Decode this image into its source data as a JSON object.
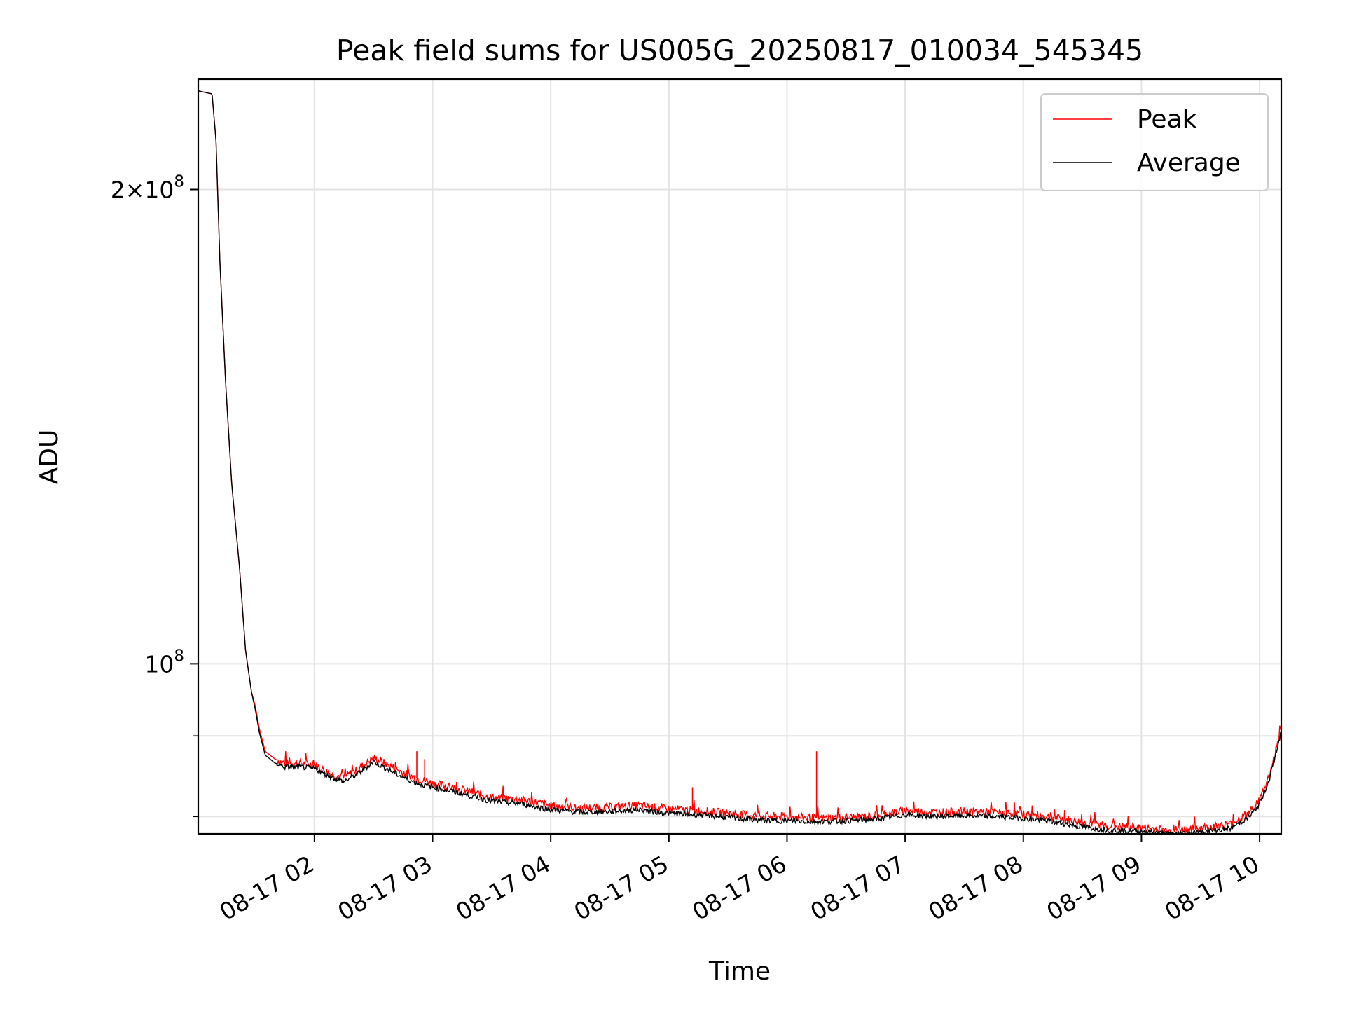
{
  "chart_data": {
    "type": "line",
    "title": "Peak field sums for US005G_20250817_010034_545345",
    "xlabel": "Time",
    "ylabel": "ADU",
    "y_scale": "log",
    "ylim": [
      78000000,
      235000000
    ],
    "xlim": [
      "2025-08-17 01:01",
      "2025-08-17 10:11"
    ],
    "x_ticks": [
      {
        "x": "2025-08-17 02:00",
        "label": "08-17 02"
      },
      {
        "x": "2025-08-17 03:00",
        "label": "08-17 03"
      },
      {
        "x": "2025-08-17 04:00",
        "label": "08-17 04"
      },
      {
        "x": "2025-08-17 05:00",
        "label": "08-17 05"
      },
      {
        "x": "2025-08-17 06:00",
        "label": "08-17 06"
      },
      {
        "x": "2025-08-17 07:00",
        "label": "08-17 07"
      },
      {
        "x": "2025-08-17 08:00",
        "label": "08-17 08"
      },
      {
        "x": "2025-08-17 09:00",
        "label": "08-17 09"
      },
      {
        "x": "2025-08-17 10:00",
        "label": "08-17 10"
      }
    ],
    "y_major_ticks": [
      {
        "y": 100000000,
        "base": "10",
        "exp": "8"
      },
      {
        "y": 200000000,
        "base": "2×10",
        "exp": "8"
      }
    ],
    "y_minor_ticks": [
      80000000,
      90000000
    ],
    "grid": true,
    "legend_position": "top-right",
    "series": [
      {
        "name": "Peak",
        "color": "#ff0000",
        "x": [
          "2025-08-17 01:01",
          "2025-08-17 01:08",
          "2025-08-17 01:10",
          "2025-08-17 01:12",
          "2025-08-17 01:15",
          "2025-08-17 01:18",
          "2025-08-17 01:22",
          "2025-08-17 01:25",
          "2025-08-17 01:28",
          "2025-08-17 01:30",
          "2025-08-17 01:32",
          "2025-08-17 01:35",
          "2025-08-17 01:40",
          "2025-08-17 01:45",
          "2025-08-17 01:52",
          "2025-08-17 02:00",
          "2025-08-17 02:08",
          "2025-08-17 02:15",
          "2025-08-17 02:22",
          "2025-08-17 02:30",
          "2025-08-17 02:38",
          "2025-08-17 02:45",
          "2025-08-17 02:52",
          "2025-08-17 03:00",
          "2025-08-17 03:15",
          "2025-08-17 03:30",
          "2025-08-17 03:45",
          "2025-08-17 04:00",
          "2025-08-17 04:15",
          "2025-08-17 04:30",
          "2025-08-17 04:45",
          "2025-08-17 05:00",
          "2025-08-17 05:15",
          "2025-08-17 05:30",
          "2025-08-17 05:45",
          "2025-08-17 06:00",
          "2025-08-17 06:15",
          "2025-08-17 06:30",
          "2025-08-17 06:45",
          "2025-08-17 07:00",
          "2025-08-17 07:15",
          "2025-08-17 07:30",
          "2025-08-17 07:45",
          "2025-08-17 08:00",
          "2025-08-17 08:15",
          "2025-08-17 08:30",
          "2025-08-17 08:45",
          "2025-08-17 09:00",
          "2025-08-17 09:15",
          "2025-08-17 09:30",
          "2025-08-17 09:45",
          "2025-08-17 09:55",
          "2025-08-17 10:00",
          "2025-08-17 10:05",
          "2025-08-17 10:11"
        ],
        "y": [
          231000000,
          230000000,
          215000000,
          180000000,
          150000000,
          130000000,
          115000000,
          102000000,
          96000000,
          94000000,
          91000000,
          88000000,
          87000000,
          86500000,
          86500000,
          86300000,
          85200000,
          84700000,
          85700000,
          87200000,
          86200000,
          85300000,
          84600000,
          84000000,
          83200000,
          82300000,
          82000000,
          81300000,
          81000000,
          81100000,
          81300000,
          80900000,
          80700000,
          80400000,
          80100000,
          80000000,
          79800000,
          79900000,
          80100000,
          80700000,
          80500000,
          80600000,
          80500000,
          80300000,
          79900000,
          79300000,
          78900000,
          78700000,
          78400000,
          78700000,
          79100000,
          80500000,
          82000000,
          85000000,
          91000000
        ]
      },
      {
        "name": "Average",
        "color": "#000000",
        "x": [
          "2025-08-17 01:01",
          "2025-08-17 01:08",
          "2025-08-17 01:10",
          "2025-08-17 01:12",
          "2025-08-17 01:15",
          "2025-08-17 01:18",
          "2025-08-17 01:22",
          "2025-08-17 01:25",
          "2025-08-17 01:28",
          "2025-08-17 01:30",
          "2025-08-17 01:32",
          "2025-08-17 01:35",
          "2025-08-17 01:40",
          "2025-08-17 01:45",
          "2025-08-17 01:52",
          "2025-08-17 02:00",
          "2025-08-17 02:08",
          "2025-08-17 02:15",
          "2025-08-17 02:22",
          "2025-08-17 02:30",
          "2025-08-17 02:38",
          "2025-08-17 02:45",
          "2025-08-17 02:52",
          "2025-08-17 03:00",
          "2025-08-17 03:15",
          "2025-08-17 03:30",
          "2025-08-17 03:45",
          "2025-08-17 04:00",
          "2025-08-17 04:15",
          "2025-08-17 04:30",
          "2025-08-17 04:45",
          "2025-08-17 05:00",
          "2025-08-17 05:15",
          "2025-08-17 05:30",
          "2025-08-17 05:45",
          "2025-08-17 06:00",
          "2025-08-17 06:15",
          "2025-08-17 06:30",
          "2025-08-17 06:45",
          "2025-08-17 07:00",
          "2025-08-17 07:15",
          "2025-08-17 07:30",
          "2025-08-17 07:45",
          "2025-08-17 08:00",
          "2025-08-17 08:15",
          "2025-08-17 08:30",
          "2025-08-17 08:45",
          "2025-08-17 09:00",
          "2025-08-17 09:15",
          "2025-08-17 09:30",
          "2025-08-17 09:45",
          "2025-08-17 09:55",
          "2025-08-17 10:00",
          "2025-08-17 10:05",
          "2025-08-17 10:11"
        ],
        "y": [
          231000000,
          230000000,
          215000000,
          180000000,
          150000000,
          130000000,
          115000000,
          102000000,
          96000000,
          93500000,
          90500000,
          87500000,
          86500000,
          86000000,
          86000000,
          85800000,
          84800000,
          84200000,
          85100000,
          86700000,
          85600000,
          84700000,
          84000000,
          83500000,
          82700000,
          81800000,
          81500000,
          80800000,
          80500000,
          80600000,
          80800000,
          80400000,
          80200000,
          79900000,
          79600000,
          79500000,
          79400000,
          79500000,
          79700000,
          80200000,
          80000000,
          80100000,
          80000000,
          79800000,
          79400000,
          78800000,
          78400000,
          78300000,
          78000000,
          78200000,
          78600000,
          80000000,
          81500000,
          84500000,
          90500000
        ]
      }
    ],
    "spikes": [
      {
        "series": "Peak",
        "x": "2025-08-17 02:52",
        "y": 88000000
      },
      {
        "series": "Peak",
        "x": "2025-08-17 02:56",
        "y": 87000000
      },
      {
        "series": "Peak",
        "x": "2025-08-17 05:12",
        "y": 83500000
      },
      {
        "series": "Peak",
        "x": "2025-08-17 06:15",
        "y": 88000000
      }
    ]
  }
}
